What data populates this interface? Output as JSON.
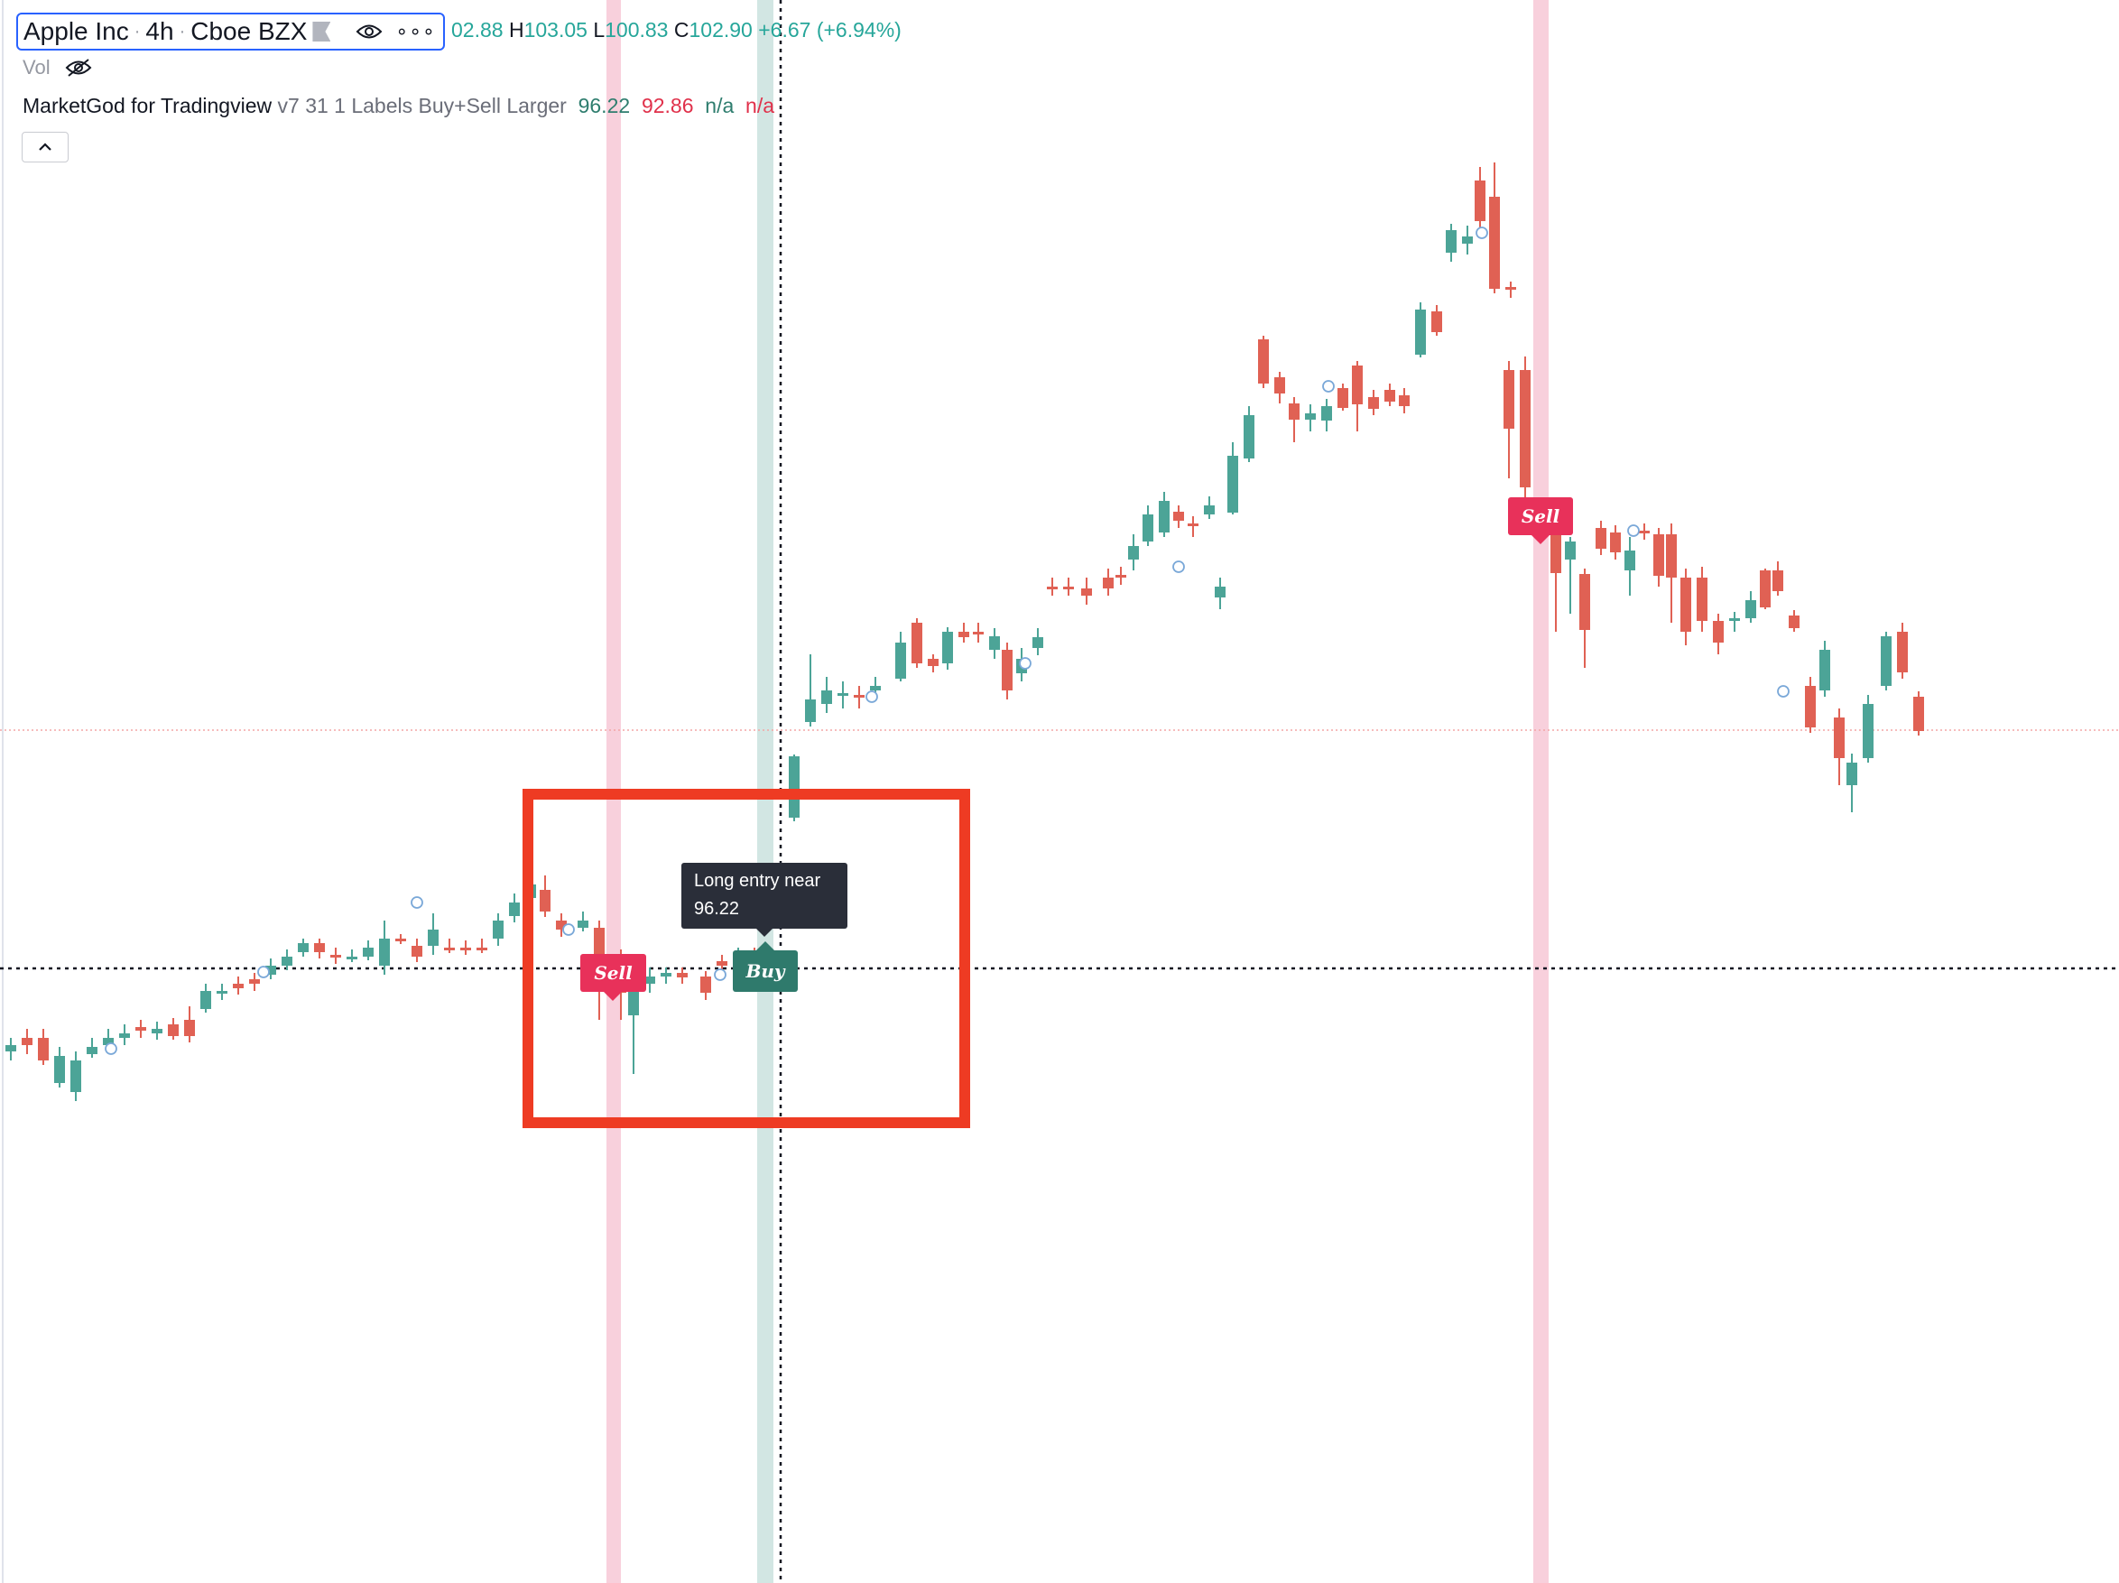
{
  "header": {
    "symbol": "Apple Inc",
    "interval": "4h",
    "exchange": "Cboe BZX",
    "open_tail": "02.88",
    "high_key": "H",
    "high": "103.05",
    "low_key": "L",
    "low": "100.83",
    "close_key": "C",
    "close": "102.90",
    "change": "+6.67 (+6.94%)"
  },
  "volume": {
    "label": "Vol"
  },
  "indicator": {
    "name": "MarketGod for Tradingview",
    "params": "v7 31 1 Labels Buy+Sell Larger",
    "value1": "96.22",
    "value2": "92.86",
    "value3": "n/a",
    "value4": "n/a"
  },
  "signals": [
    {
      "text": "Sell",
      "type": "sell"
    },
    {
      "text": "Buy",
      "type": "buy"
    },
    {
      "text": "Sell",
      "type": "sell"
    }
  ],
  "tooltip": {
    "line1": "Long entry near",
    "line2": "96.22"
  },
  "colors": {
    "up": "#4ca497",
    "down": "#e06154",
    "sell_band": "#f8d0dc",
    "buy_band": "#d2e6e3",
    "sell_label": "#e8315a",
    "buy_label": "#2f7a6c",
    "highlight_box": "#ee3b23",
    "legend_border": "#2962ff",
    "tooltip_bg": "#2a2e39"
  },
  "icons": [
    "eye-icon",
    "eye-slash-icon",
    "more-dots-icon",
    "flag-icon",
    "chevron-up-icon"
  ]
}
